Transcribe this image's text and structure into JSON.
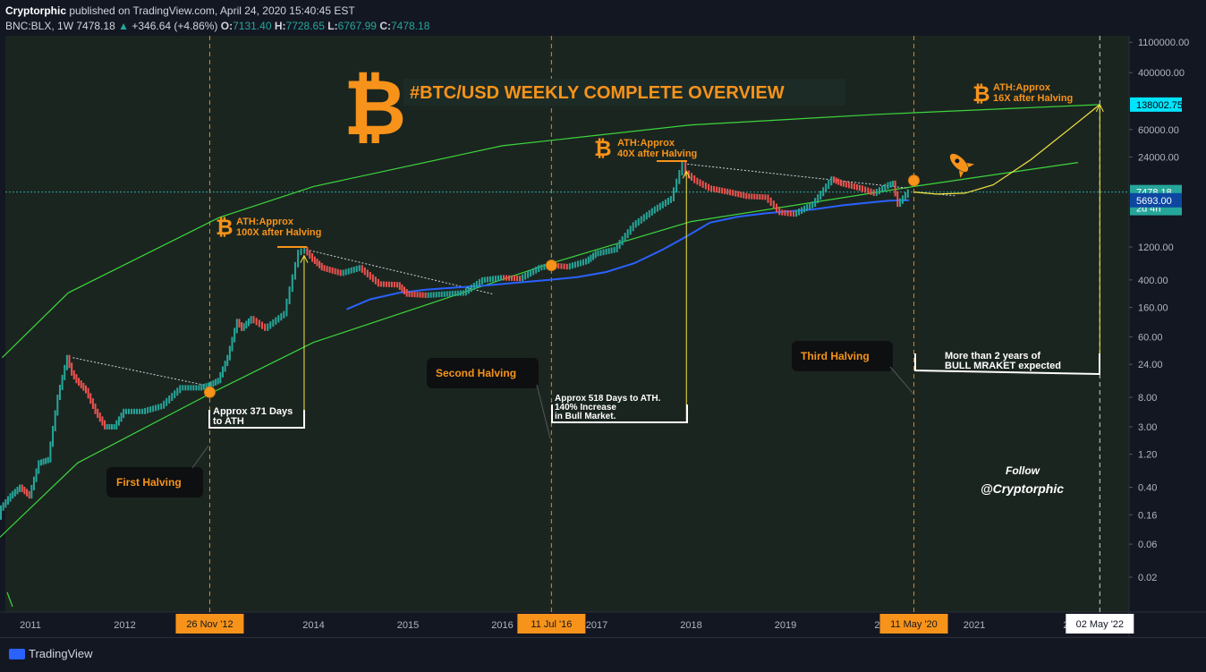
{
  "header": {
    "author": "Cryptorphic",
    "published": "published on TradingView.com, April 24, 2020 15:40:45 EST",
    "symbol": "BNC:BLX, 1W",
    "last": "7478.18",
    "change": "+346.64 (+4.86%)",
    "o_label": "O:",
    "o": "7131.40",
    "h_label": "H:",
    "h": "7728.65",
    "l_label": "L:",
    "l": "6767.99",
    "c_label": "C:",
    "c": "7478.18"
  },
  "footer": {
    "brand": "TradingView"
  },
  "colors": {
    "background": "#131722",
    "up": "#26a69a",
    "down": "#ef5350",
    "channel": "#3cd63c",
    "ma": "#2962ff",
    "accent": "#f7931a",
    "projection": "#f5e642",
    "price_tag": "#26a69a",
    "ath_tag": "#00e5ff",
    "ma_tag": "#0d47a1"
  },
  "chart_data": {
    "type": "line",
    "title": "#BTC/USD WEEKLY COMPLETE OVERVIEW",
    "scale": "log",
    "y_ticks": [
      "1100000.00",
      "400000.00",
      "138002.75",
      "60000.00",
      "24000.00",
      "7478.18",
      "2d 4h",
      "5693.00",
      "1200.00",
      "400.00",
      "160.00",
      "60.00",
      "24.00",
      "8.00",
      "3.00",
      "1.20",
      "0.40",
      "0.16",
      "0.06",
      "0.02"
    ],
    "y_tick_values": [
      1100000,
      400000,
      138002.75,
      60000,
      24000,
      7478.18,
      null,
      5693,
      1200,
      400,
      160,
      60,
      24,
      8,
      3,
      1.2,
      0.4,
      0.16,
      0.06,
      0.02
    ],
    "x_ticks": [
      "2011",
      "2012",
      "26 Nov '12",
      "2014",
      "2015",
      "2016",
      "11 Jul '16",
      "2017",
      "2018",
      "2019",
      "20",
      "11 May '20",
      "2021",
      "20",
      "02 May '22"
    ],
    "x_tick_values": [
      2011.0,
      2012.0,
      2012.9,
      2014.0,
      2015.0,
      2016.0,
      2016.52,
      2017.0,
      2018.0,
      2019.0,
      2020.0,
      2020.36,
      2021.0,
      2022.0,
      2022.33
    ],
    "highlighted_ticks": [
      "26 Nov '12",
      "11 Jul '16",
      "11 May '20"
    ],
    "white_tick": "02 May '22",
    "price_series": {
      "name": "BNC:BLX",
      "x": [
        2010.6,
        2010.7,
        2010.8,
        2010.9,
        2011.0,
        2011.1,
        2011.2,
        2011.3,
        2011.4,
        2011.45,
        2011.5,
        2011.6,
        2011.7,
        2011.8,
        2011.9,
        2012.0,
        2012.2,
        2012.4,
        2012.6,
        2012.8,
        2012.9,
        2013.0,
        2013.1,
        2013.2,
        2013.25,
        2013.35,
        2013.5,
        2013.7,
        2013.85,
        2013.92,
        2014.0,
        2014.1,
        2014.3,
        2014.5,
        2014.7,
        2014.9,
        2015.0,
        2015.2,
        2015.4,
        2015.6,
        2015.8,
        2016.0,
        2016.2,
        2016.4,
        2016.52,
        2016.7,
        2016.9,
        2017.0,
        2017.2,
        2017.4,
        2017.6,
        2017.8,
        2017.92,
        2017.96,
        2018.05,
        2018.2,
        2018.4,
        2018.6,
        2018.8,
        2018.95,
        2019.1,
        2019.3,
        2019.5,
        2019.6,
        2019.8,
        2019.95,
        2020.1,
        2020.15,
        2020.2,
        2020.31
      ],
      "y": [
        0.06,
        0.2,
        0.3,
        0.4,
        0.3,
        0.9,
        1.0,
        8.0,
        30.0,
        18.0,
        14.0,
        10.0,
        5.0,
        3.0,
        3.0,
        5.0,
        5.0,
        6.0,
        11.0,
        11.0,
        12.0,
        14.0,
        30.0,
        100.0,
        80.0,
        110.0,
        80.0,
        130.0,
        1000.0,
        1100.0,
        800.0,
        600.0,
        500.0,
        600.0,
        350.0,
        340.0,
        250.0,
        240.0,
        250.0,
        260.0,
        400.0,
        430.0,
        420.0,
        600.0,
        650.0,
        620.0,
        750.0,
        960.0,
        1100.0,
        2500.0,
        4000.0,
        6000.0,
        19000.0,
        14000.0,
        11000.0,
        8500.0,
        7500.0,
        6500.0,
        6300.0,
        3800.0,
        3600.0,
        5000.0,
        11500.0,
        10000.0,
        8500.0,
        7200.0,
        9500.0,
        10000.0,
        5000.0,
        7478.18
      ]
    },
    "ma_series": {
      "x": [
        2014.35,
        2014.6,
        2014.9,
        2015.2,
        2015.5,
        2015.8,
        2016.1,
        2016.5,
        2016.8,
        2017.1,
        2017.4,
        2017.7,
        2017.95,
        2018.2,
        2018.5,
        2018.8,
        2019.0,
        2019.3,
        2019.6,
        2019.9,
        2020.1,
        2020.31
      ],
      "y": [
        150,
        210,
        260,
        290,
        310,
        330,
        360,
        400,
        440,
        520,
        700,
        1100,
        1700,
        2700,
        3300,
        3700,
        3900,
        4200,
        4800,
        5300,
        5600,
        5693
      ]
    },
    "channel_upper": {
      "x": [
        2010.7,
        2011.4,
        2013.0,
        2014.0,
        2016.0,
        2018.0,
        2020.0,
        2022.33
      ],
      "y": [
        30,
        260,
        3200,
        9000,
        35000,
        70000,
        100000,
        138002.75
      ]
    },
    "channel_lower": {
      "x": [
        2010.6,
        2011.5,
        2012.9,
        2014.0,
        2016.52,
        2018.0,
        2020.36,
        2022.1
      ],
      "y": [
        0.06,
        0.9,
        9.0,
        50,
        700,
        2800,
        9000,
        20000
      ]
    },
    "projection": {
      "x": [
        2020.36,
        2020.6,
        2020.9,
        2021.2,
        2021.6,
        2022.0,
        2022.33
      ],
      "y": [
        7478.18,
        7000,
        7200,
        9500,
        22000,
        60000,
        138002.75
      ]
    },
    "trendlines": [
      {
        "x": [
          2011.45,
          2012.85
        ],
        "y": [
          30,
          12
        ]
      },
      {
        "x": [
          2013.92,
          2015.9
        ],
        "y": [
          1100,
          250
        ]
      },
      {
        "x": [
          2017.96,
          2020.3
        ],
        "y": [
          19000,
          8500
        ]
      },
      {
        "x": [
          2020.36,
          2020.8
        ],
        "y": [
          7478.18,
          6600
        ]
      }
    ],
    "halving_dates_x": [
      2012.9,
      2016.52,
      2020.36,
      2022.33
    ],
    "ath_to_halving_lines": [
      {
        "x": 2013.9,
        "y_from": 3.0,
        "y_to": 900
      },
      {
        "x": 2017.95,
        "y_from": 3.5,
        "y_to": 15000
      },
      {
        "x": 2022.33,
        "y_from": 18,
        "y_to": 138002.75
      }
    ],
    "halving_points": [
      {
        "x": 2012.9,
        "y": 9.5
      },
      {
        "x": 2016.52,
        "y": 650
      },
      {
        "x": 2020.36,
        "y": 11000
      }
    ]
  },
  "annotations": {
    "ath1": "ATH:Approx\n100X after Halving",
    "ath2": "ATH:Approx\n40X after Halving",
    "ath3": "ATH:Approx\n16X after Halving",
    "first_halving": "First Halving",
    "second_halving": "Second Halving",
    "third_halving": "Third Halving",
    "days371": "Approx 371 Days\nto ATH",
    "days518": "Approx 518 Days to ATH.\n140% Increase\nin Bull Market.",
    "bull": "More than 2 years of\nBULL MRAKET expected",
    "follow": "Follow",
    "handle": "@Cryptorphic"
  }
}
